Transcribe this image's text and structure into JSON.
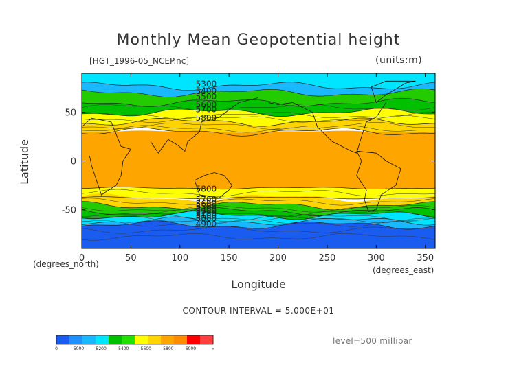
{
  "chart_data": {
    "type": "contour",
    "title": "Monthly Mean Geopotential height",
    "subtitle": "[HGT_1996-05_NCEP.nc]",
    "units": "(units:m)",
    "xlabel": "Longitude",
    "ylabel": "Latitude",
    "x_units": "(degrees_east)",
    "y_units": "(degrees_north)",
    "xlim": [
      0,
      360
    ],
    "ylim": [
      -90,
      90
    ],
    "x_ticks": [
      "0",
      "50",
      "100",
      "150",
      "200",
      "250",
      "300",
      "350"
    ],
    "y_ticks": [
      "50",
      "0",
      "-50"
    ],
    "contour_interval_text": "CONTOUR INTERVAL = 5.000E+01",
    "level_text": "level=500 millibar",
    "contour_labels": [
      "5300",
      "5400",
      "5500",
      "5600",
      "5700",
      "5800",
      "5800",
      "5700",
      "5600",
      "5500",
      "5400",
      "5300",
      "5200",
      "5100",
      "5000",
      "4900"
    ],
    "colorbar": {
      "ticks": [
        "0",
        "5000",
        "5200",
        "5400",
        "5600",
        "5800",
        "6000",
        "∞"
      ],
      "colors": [
        "#1a5cf0",
        "#1e90ff",
        "#19b8ff",
        "#00e5ff",
        "#00c000",
        "#22e000",
        "#ffff00",
        "#ffd400",
        "#ffa500",
        "#ff8c00",
        "#ff0000",
        "#ff4040"
      ]
    },
    "bands": [
      {
        "lat_from": 90,
        "lat_to": 77,
        "color": "#00e5ff"
      },
      {
        "lat_from": 77,
        "lat_to": 70,
        "color": "#19b8ff"
      },
      {
        "lat_from": 70,
        "lat_to": 60,
        "color": "#22cc00"
      },
      {
        "lat_from": 60,
        "lat_to": 50,
        "color": "#00c000"
      },
      {
        "lat_from": 50,
        "lat_to": 40,
        "color": "#ffff00"
      },
      {
        "lat_from": 40,
        "lat_to": 30,
        "color": "#ffd400"
      },
      {
        "lat_from": 30,
        "lat_to": -28,
        "color": "#ffa500"
      },
      {
        "lat_from": -28,
        "lat_to": -38,
        "color": "#ffff00"
      },
      {
        "lat_from": -38,
        "lat_to": -46,
        "color": "#ffd400"
      },
      {
        "lat_from": -46,
        "lat_to": -52,
        "color": "#22cc00"
      },
      {
        "lat_from": -52,
        "lat_to": -56,
        "color": "#00c000"
      },
      {
        "lat_from": -56,
        "lat_to": -62,
        "color": "#00e5ff"
      },
      {
        "lat_from": -62,
        "lat_to": -66,
        "color": "#19b8ff"
      },
      {
        "lat_from": -66,
        "lat_to": -90,
        "color": "#1a5cf0"
      }
    ]
  }
}
